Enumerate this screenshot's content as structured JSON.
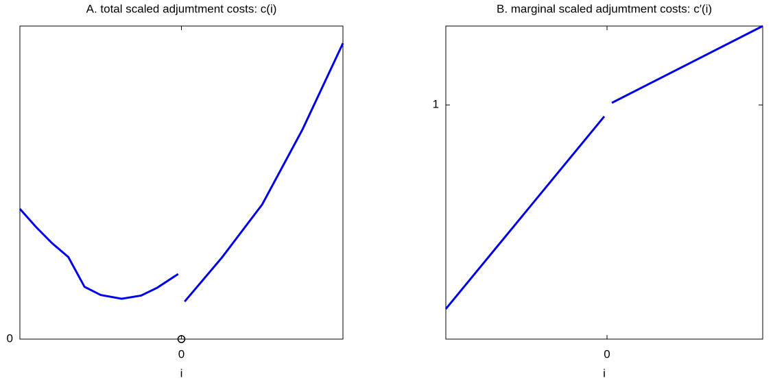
{
  "chart_data": [
    {
      "type": "line",
      "title": "A. total scaled adjumtment costs: c(i)",
      "xlabel": "i",
      "xlim": [
        -1,
        1
      ],
      "xticks": [
        0
      ],
      "ylim": [
        0,
        1
      ],
      "yticks": [
        0
      ],
      "series": [
        {
          "color": "#0000e6",
          "x": [
            -1,
            -0.9,
            -0.8,
            -0.7,
            -0.6,
            -0.5,
            -0.37,
            -0.25,
            -0.15,
            -0.02,
            null,
            0.02,
            0.25,
            0.5,
            0.75,
            1
          ],
          "values": [
            0.416,
            0.358,
            0.306,
            0.262,
            0.167,
            0.141,
            0.129,
            0.139,
            0.164,
            0.208,
            null,
            0.12,
            0.26,
            0.43,
            0.67,
            0.945
          ]
        }
      ],
      "marker": {
        "x": 0,
        "y": 0
      }
    },
    {
      "type": "line",
      "title": "B. marginal scaled adjumtment costs: c′(i)",
      "xlabel": "i",
      "xlim": [
        -1,
        0.966
      ],
      "xticks": [
        0
      ],
      "ylim": [
        0,
        1.337
      ],
      "yticks": [
        1
      ],
      "series": [
        {
          "color": "#0000e6",
          "x": [
            -1,
            -0.017,
            null,
            0.03,
            0.966
          ],
          "values": [
            0.129,
            0.951,
            null,
            1.009,
            1.337
          ]
        }
      ]
    }
  ]
}
